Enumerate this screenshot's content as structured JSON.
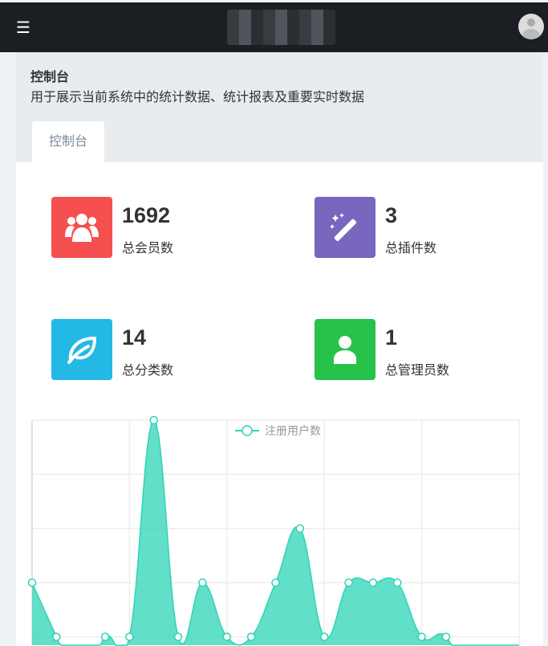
{
  "navbar": {
    "menu_icon": "hamburger-icon",
    "avatar_icon": "user-avatar-icon"
  },
  "header": {
    "title": "控制台",
    "description": "用于展示当前系统中的统计数据、统计报表及重要实时数据"
  },
  "tabs": [
    {
      "label": "控制台",
      "active": true
    }
  ],
  "stats": [
    {
      "value": "1692",
      "label": "总会员数",
      "icon": "users-icon",
      "color": "#f5504f"
    },
    {
      "value": "3",
      "label": "总插件数",
      "icon": "magic-wand-icon",
      "color": "#7866bf"
    },
    {
      "value": "14",
      "label": "总分类数",
      "icon": "leaf-icon",
      "color": "#24b8e6"
    },
    {
      "value": "1",
      "label": "总管理员数",
      "icon": "user-icon",
      "color": "#26c24a"
    }
  ],
  "chart_data": {
    "type": "area",
    "legend": [
      "注册用户数"
    ],
    "legend_position": "top-center",
    "grid": true,
    "color": "#2dd4b5",
    "smooth": true,
    "ylim": [
      0,
      5
    ],
    "series": [
      {
        "name": "注册用户数",
        "values": [
          2,
          1,
          0,
          1,
          1,
          5,
          1,
          2,
          1,
          1,
          2,
          3,
          1,
          2,
          2,
          2,
          1,
          1,
          0,
          0,
          0
        ]
      }
    ]
  }
}
